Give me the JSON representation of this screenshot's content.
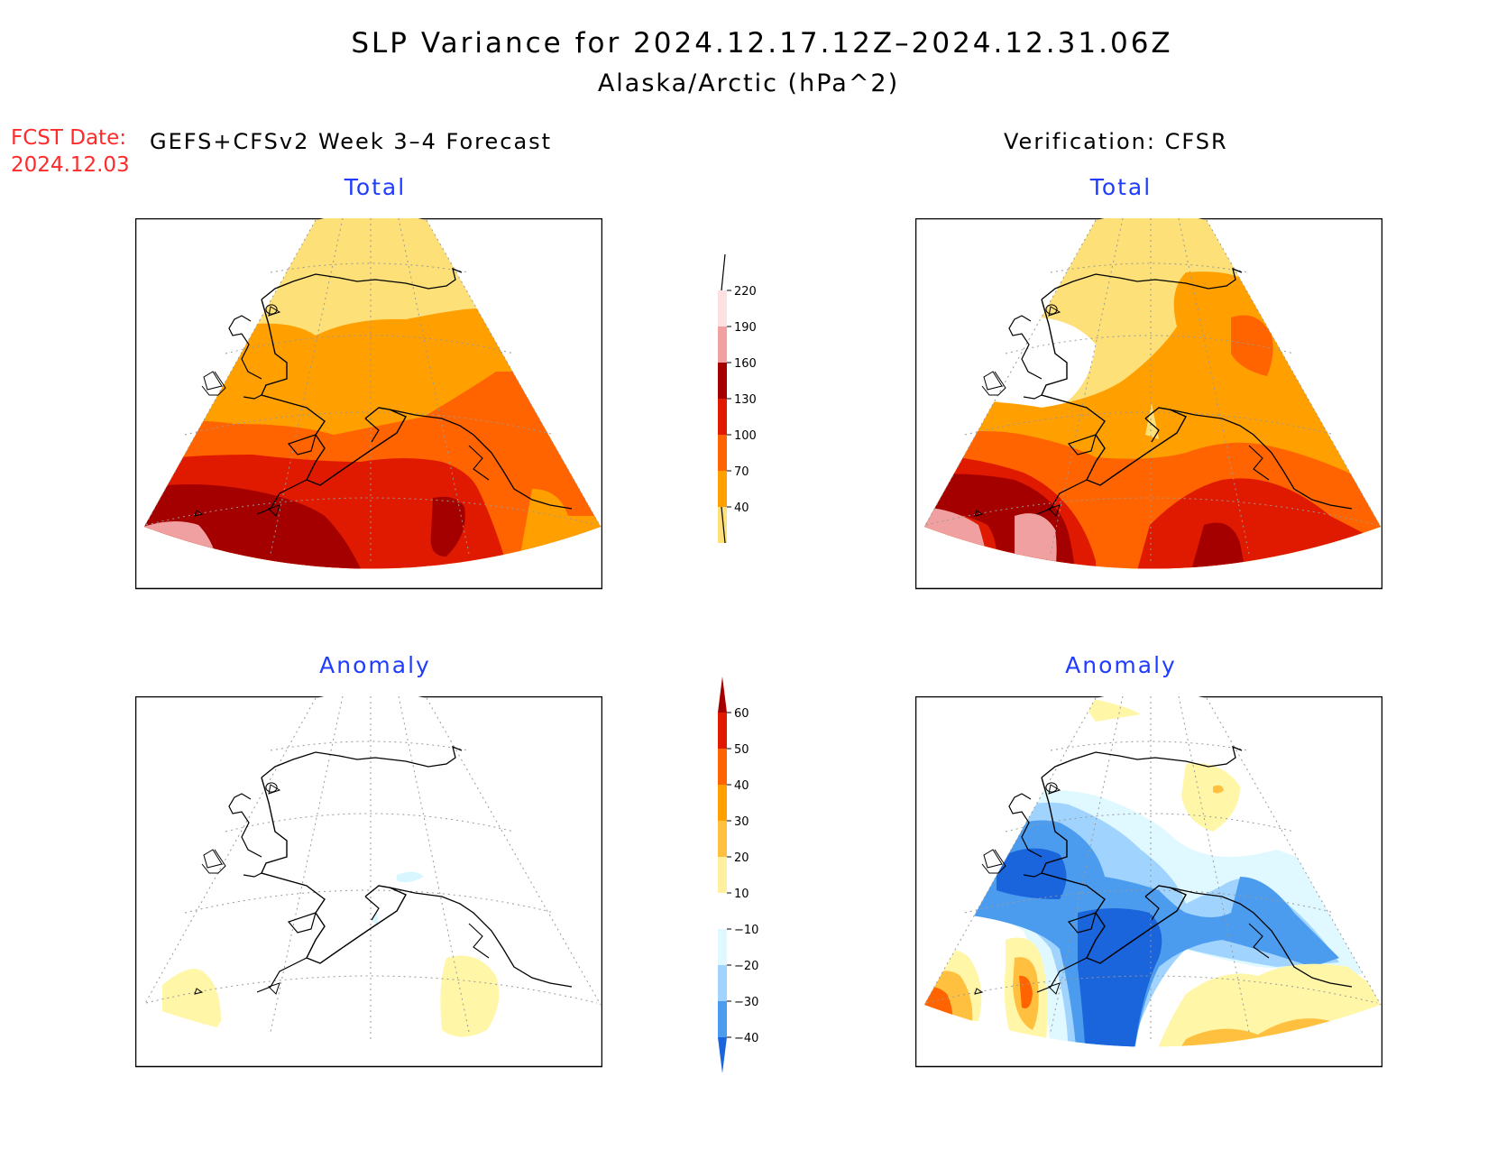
{
  "header": {
    "title": "SLP Variance for 2024.12.17.12Z–2024.12.31.06Z",
    "subtitle": "Alaska/Arctic (hPa^2)",
    "fcst_label": "FCST Date:",
    "fcst_date": "2024.12.03"
  },
  "columns": {
    "forecast": "GEFS+CFSv2 Week 3–4 Forecast",
    "verification": "Verification: CFSR"
  },
  "panels": {
    "total_forecast": "Total",
    "total_verification": "Total",
    "anomaly_forecast": "Anomaly",
    "anomaly_verification": "Anomaly"
  },
  "colorbars": {
    "total": {
      "labels": [
        "220",
        "190",
        "160",
        "130",
        "100",
        "70",
        "40"
      ],
      "colors": [
        "#fde0e0",
        "#f0a0a0",
        "#a50000",
        "#e01a00",
        "#ff6400",
        "#ffa000",
        "#fde078"
      ]
    },
    "anomaly": {
      "labels": [
        "60",
        "50",
        "40",
        "30",
        "20",
        "10",
        "−10",
        "−20",
        "−30",
        "−40"
      ],
      "colors": [
        "#a50000",
        "#e01a00",
        "#ff6400",
        "#ffa000",
        "#ffc040",
        "#fff0a0",
        "#ffffff",
        "#e0f8ff",
        "#a0d4ff",
        "#4b9bef",
        "#1a64dc"
      ]
    }
  }
}
